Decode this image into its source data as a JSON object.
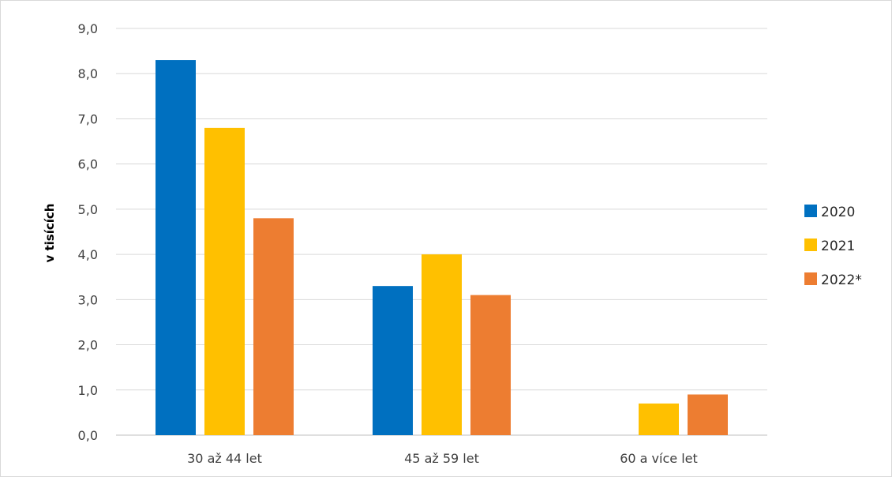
{
  "chart_data": {
    "type": "bar",
    "title": "",
    "xlabel": "",
    "ylabel": "v tisících",
    "ylim": [
      0,
      9
    ],
    "yticks": [
      "0,0",
      "1,0",
      "2,0",
      "3,0",
      "4,0",
      "5,0",
      "6,0",
      "7,0",
      "8,0",
      "9,0"
    ],
    "categories": [
      "30 až 44 let",
      "45 až 59 let",
      "60 a více let"
    ],
    "series": [
      {
        "name": "2020",
        "color": "#0070c0",
        "values": [
          8.3,
          3.3,
          0.0
        ]
      },
      {
        "name": "2021",
        "color": "#ffc000",
        "values": [
          6.8,
          4.0,
          0.7
        ]
      },
      {
        "name": "2022*",
        "color": "#ed7d31",
        "values": [
          4.8,
          3.1,
          0.9
        ]
      }
    ],
    "grid": true,
    "legend": "right"
  }
}
